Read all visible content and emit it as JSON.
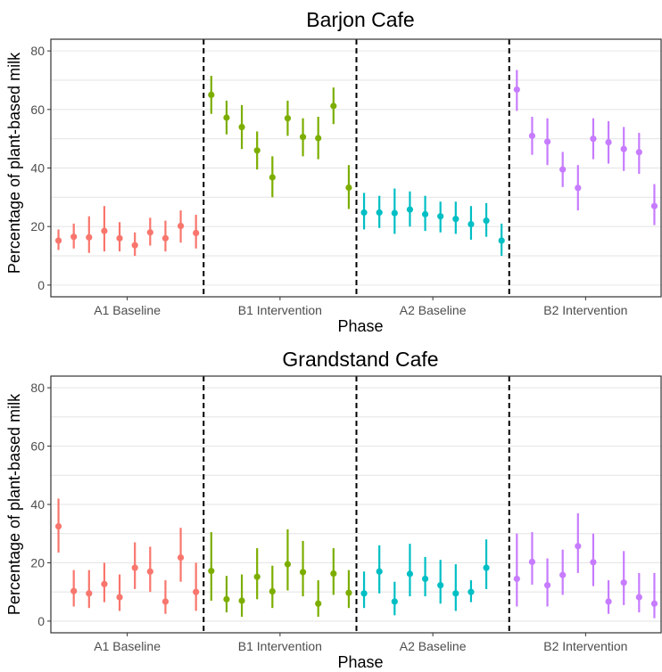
{
  "colors": {
    "A1 Baseline": "#F8766D",
    "B1 Intervention": "#7CAE00",
    "A2 Baseline": "#00BFC4",
    "B2 Intervention": "#C77CFF"
  },
  "chart_data": [
    {
      "type": "scatter",
      "title": "Barjon Cafe",
      "xlabel": "Phase",
      "ylabel": "Percentage of plant-based milk",
      "ylim": [
        -4,
        84
      ],
      "yticks": [
        0,
        20,
        40,
        60,
        80
      ],
      "categories": [
        "A1 Baseline",
        "B1 Intervention",
        "A2 Baseline",
        "B2 Intervention"
      ],
      "grid": true,
      "series": [
        {
          "category": "A1 Baseline",
          "points": [
            {
              "y": 15.2,
              "lo": 12.0,
              "hi": 19.0
            },
            {
              "y": 16.5,
              "lo": 12.5,
              "hi": 21.0
            },
            {
              "y": 16.3,
              "lo": 11.0,
              "hi": 23.5
            },
            {
              "y": 18.5,
              "lo": 11.5,
              "hi": 27.0
            },
            {
              "y": 16.0,
              "lo": 11.5,
              "hi": 21.5
            },
            {
              "y": 13.6,
              "lo": 10.0,
              "hi": 18.0
            },
            {
              "y": 18.0,
              "lo": 13.5,
              "hi": 23.0
            },
            {
              "y": 16.0,
              "lo": 11.5,
              "hi": 22.0
            },
            {
              "y": 20.2,
              "lo": 14.5,
              "hi": 25.5
            },
            {
              "y": 17.8,
              "lo": 12.5,
              "hi": 24.0
            }
          ]
        },
        {
          "category": "B1 Intervention",
          "points": [
            {
              "y": 65.0,
              "lo": 58.5,
              "hi": 71.5
            },
            {
              "y": 57.2,
              "lo": 51.5,
              "hi": 63.0
            },
            {
              "y": 54.0,
              "lo": 46.5,
              "hi": 61.5
            },
            {
              "y": 46.0,
              "lo": 39.5,
              "hi": 52.5
            },
            {
              "y": 36.8,
              "lo": 30.0,
              "hi": 44.0
            },
            {
              "y": 57.0,
              "lo": 51.0,
              "hi": 63.0
            },
            {
              "y": 50.6,
              "lo": 44.0,
              "hi": 57.0
            },
            {
              "y": 50.2,
              "lo": 43.0,
              "hi": 57.5
            },
            {
              "y": 61.2,
              "lo": 55.0,
              "hi": 67.5
            },
            {
              "y": 33.3,
              "lo": 26.0,
              "hi": 41.0
            }
          ]
        },
        {
          "category": "A2 Baseline",
          "points": [
            {
              "y": 24.8,
              "lo": 19.0,
              "hi": 31.5
            },
            {
              "y": 24.8,
              "lo": 19.5,
              "hi": 30.5
            },
            {
              "y": 24.6,
              "lo": 17.5,
              "hi": 33.0
            },
            {
              "y": 25.8,
              "lo": 20.0,
              "hi": 32.0
            },
            {
              "y": 24.2,
              "lo": 18.5,
              "hi": 30.5
            },
            {
              "y": 23.5,
              "lo": 18.0,
              "hi": 28.5
            },
            {
              "y": 22.6,
              "lo": 17.5,
              "hi": 28.5
            },
            {
              "y": 20.8,
              "lo": 15.5,
              "hi": 27.0
            },
            {
              "y": 22.0,
              "lo": 16.5,
              "hi": 28.0
            },
            {
              "y": 15.2,
              "lo": 10.0,
              "hi": 21.0
            }
          ]
        },
        {
          "category": "B2 Intervention",
          "points": [
            {
              "y": 66.8,
              "lo": 59.5,
              "hi": 73.5
            },
            {
              "y": 51.0,
              "lo": 44.5,
              "hi": 57.5
            },
            {
              "y": 49.0,
              "lo": 41.0,
              "hi": 57.0
            },
            {
              "y": 39.5,
              "lo": 33.5,
              "hi": 45.5
            },
            {
              "y": 33.2,
              "lo": 25.5,
              "hi": 41.0
            },
            {
              "y": 50.0,
              "lo": 43.0,
              "hi": 57.0
            },
            {
              "y": 48.8,
              "lo": 41.5,
              "hi": 56.0
            },
            {
              "y": 46.5,
              "lo": 39.0,
              "hi": 54.0
            },
            {
              "y": 45.4,
              "lo": 38.0,
              "hi": 52.0
            },
            {
              "y": 27.0,
              "lo": 20.5,
              "hi": 34.5
            }
          ]
        }
      ]
    },
    {
      "type": "scatter",
      "title": "Grandstand Cafe",
      "xlabel": "Phase",
      "ylabel": "Percentage of plant-based milk",
      "ylim": [
        -4,
        84
      ],
      "yticks": [
        0,
        20,
        40,
        60,
        80
      ],
      "categories": [
        "A1 Baseline",
        "B1 Intervention",
        "A2 Baseline",
        "B2 Intervention"
      ],
      "grid": true,
      "series": [
        {
          "category": "A1 Baseline",
          "points": [
            {
              "y": 32.5,
              "lo": 23.5,
              "hi": 42.0
            },
            {
              "y": 10.3,
              "lo": 5.0,
              "hi": 17.5
            },
            {
              "y": 9.5,
              "lo": 4.5,
              "hi": 17.5
            },
            {
              "y": 12.7,
              "lo": 6.5,
              "hi": 20.0
            },
            {
              "y": 8.2,
              "lo": 3.5,
              "hi": 16.0
            },
            {
              "y": 18.3,
              "lo": 11.0,
              "hi": 27.0
            },
            {
              "y": 17.0,
              "lo": 10.0,
              "hi": 25.5
            },
            {
              "y": 6.7,
              "lo": 2.5,
              "hi": 14.0
            },
            {
              "y": 21.8,
              "lo": 13.5,
              "hi": 32.0
            },
            {
              "y": 10.0,
              "lo": 3.5,
              "hi": 20.0
            }
          ]
        },
        {
          "category": "B1 Intervention",
          "points": [
            {
              "y": 17.2,
              "lo": 7.0,
              "hi": 30.5
            },
            {
              "y": 7.5,
              "lo": 3.0,
              "hi": 15.5
            },
            {
              "y": 7.0,
              "lo": 1.5,
              "hi": 16.0
            },
            {
              "y": 15.2,
              "lo": 7.5,
              "hi": 25.0
            },
            {
              "y": 10.2,
              "lo": 4.5,
              "hi": 19.0
            },
            {
              "y": 19.5,
              "lo": 10.5,
              "hi": 31.5
            },
            {
              "y": 16.8,
              "lo": 8.5,
              "hi": 27.5
            },
            {
              "y": 6.0,
              "lo": 1.5,
              "hi": 14.0
            },
            {
              "y": 16.3,
              "lo": 9.0,
              "hi": 25.0
            },
            {
              "y": 9.7,
              "lo": 4.5,
              "hi": 17.5
            }
          ]
        },
        {
          "category": "A2 Baseline",
          "points": [
            {
              "y": 9.5,
              "lo": 4.5,
              "hi": 17.0
            },
            {
              "y": 17.0,
              "lo": 9.5,
              "hi": 26.0
            },
            {
              "y": 6.7,
              "lo": 2.0,
              "hi": 13.5
            },
            {
              "y": 16.2,
              "lo": 8.5,
              "hi": 26.5
            },
            {
              "y": 14.5,
              "lo": 8.5,
              "hi": 22.0
            },
            {
              "y": 12.3,
              "lo": 6.0,
              "hi": 21.0
            },
            {
              "y": 9.5,
              "lo": 3.5,
              "hi": 19.5
            },
            {
              "y": 10.0,
              "lo": 6.5,
              "hi": 14.0
            },
            {
              "y": 18.3,
              "lo": 11.0,
              "hi": 28.0
            }
          ]
        },
        {
          "category": "B2 Intervention",
          "points": [
            {
              "y": 14.5,
              "lo": 5.0,
              "hi": 30.0
            },
            {
              "y": 20.3,
              "lo": 12.5,
              "hi": 30.5
            },
            {
              "y": 12.3,
              "lo": 5.0,
              "hi": 21.5
            },
            {
              "y": 15.8,
              "lo": 9.0,
              "hi": 24.5
            },
            {
              "y": 25.7,
              "lo": 16.5,
              "hi": 37.0
            },
            {
              "y": 20.2,
              "lo": 12.0,
              "hi": 30.0
            },
            {
              "y": 6.7,
              "lo": 2.5,
              "hi": 14.0
            },
            {
              "y": 13.2,
              "lo": 5.5,
              "hi": 24.0
            },
            {
              "y": 8.2,
              "lo": 3.0,
              "hi": 16.5
            },
            {
              "y": 6.0,
              "lo": 1.0,
              "hi": 16.5
            }
          ]
        }
      ]
    }
  ]
}
